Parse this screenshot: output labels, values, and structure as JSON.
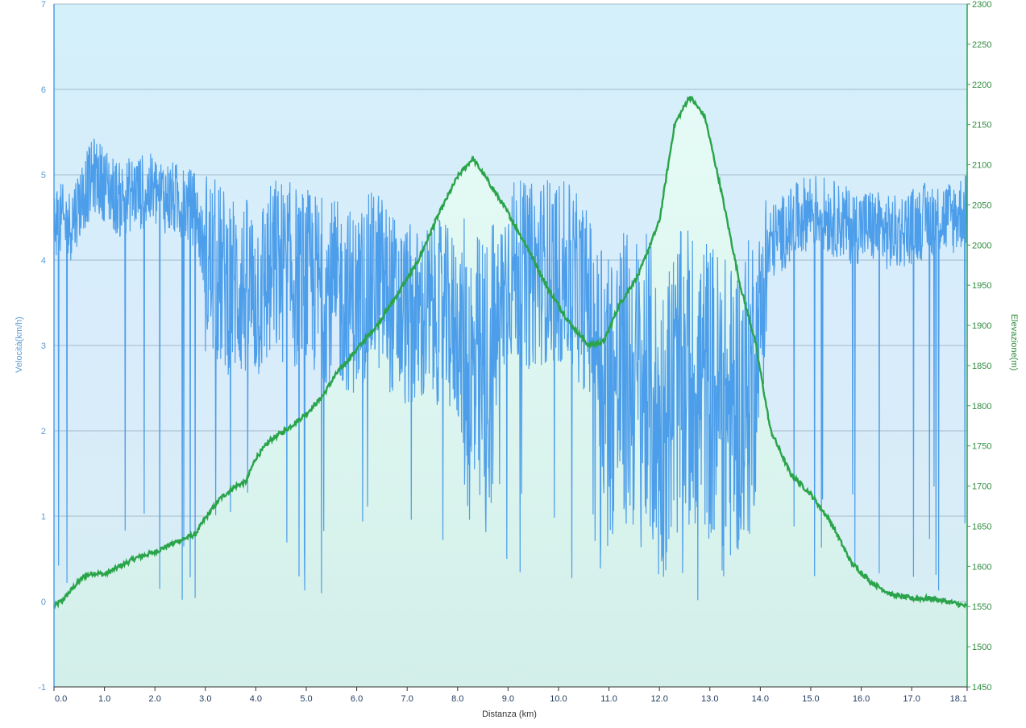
{
  "chart_data": {
    "type": "line",
    "xlabel": "Distanza  (km)",
    "ylabel_left": "Velocità(km/h)",
    "ylabel_right": "Elevazione(m)",
    "x_ticks": [
      "0.0",
      "1.0",
      "2.0",
      "3.0",
      "4.0",
      "5.0",
      "6.0",
      "7.0",
      "8.0",
      "9.0",
      "10.0",
      "11.0",
      "12.0",
      "13.0",
      "14.0",
      "15.0",
      "16.0",
      "17.0",
      "18.1"
    ],
    "xlim": [
      0,
      18.1
    ],
    "ylim_left": [
      -1,
      7
    ],
    "y_left_ticks": [
      "-1",
      "0",
      "1",
      "2",
      "3",
      "4",
      "5",
      "6",
      "7"
    ],
    "ylim_right": [
      1450,
      2300
    ],
    "y_right_ticks": [
      "1450",
      "1500",
      "1550",
      "1600",
      "1650",
      "1700",
      "1750",
      "1800",
      "1850",
      "1900",
      "1950",
      "2000",
      "2050",
      "2100",
      "2150",
      "2200",
      "2250",
      "2300"
    ],
    "grid": true,
    "series": [
      {
        "axis": "left",
        "color": "#4d9eea",
        "x": [
          0.0,
          0.3,
          0.6,
          0.8,
          1.0,
          1.3,
          1.6,
          2.0,
          2.4,
          2.8,
          3.0,
          3.3,
          3.6,
          4.0,
          4.4,
          4.8,
          5.2,
          5.6,
          6.0,
          6.4,
          6.8,
          7.2,
          7.6,
          8.0,
          8.3,
          8.6,
          9.0,
          9.4,
          9.8,
          10.2,
          10.6,
          11.0,
          11.4,
          11.8,
          12.0,
          12.3,
          12.6,
          13.0,
          13.4,
          13.8,
          14.2,
          14.6,
          15.0,
          15.4,
          15.8,
          16.2,
          16.6,
          17.0,
          17.4,
          17.8,
          18.1
        ],
        "values": [
          4.5,
          4.4,
          4.8,
          5.0,
          4.9,
          4.7,
          4.8,
          4.8,
          4.7,
          4.6,
          4.0,
          3.8,
          3.7,
          3.6,
          3.9,
          3.8,
          3.7,
          3.6,
          3.5,
          3.8,
          3.4,
          3.3,
          3.4,
          3.2,
          2.5,
          2.6,
          3.9,
          3.8,
          3.9,
          3.8,
          3.5,
          2.5,
          2.6,
          2.5,
          1.9,
          2.5,
          2.6,
          2.5,
          2.2,
          2.5,
          4.2,
          4.4,
          4.6,
          4.5,
          4.4,
          4.4,
          4.3,
          4.4,
          4.5,
          4.5,
          4.6
        ]
      },
      {
        "axis": "right",
        "color": "#2aa44a",
        "x": [
          0.0,
          0.2,
          0.4,
          0.6,
          0.8,
          1.0,
          1.3,
          1.6,
          2.0,
          2.4,
          2.8,
          3.0,
          3.3,
          3.6,
          3.8,
          4.0,
          4.3,
          4.6,
          5.0,
          5.3,
          5.6,
          6.0,
          6.4,
          6.8,
          7.2,
          7.6,
          8.0,
          8.3,
          8.6,
          9.0,
          9.4,
          9.8,
          10.2,
          10.6,
          10.9,
          11.2,
          11.6,
          12.0,
          12.3,
          12.6,
          12.9,
          13.2,
          13.6,
          13.9,
          14.2,
          14.6,
          15.0,
          15.4,
          15.8,
          16.2,
          16.6,
          17.0,
          17.4,
          17.8,
          18.1
        ],
        "values": [
          1550,
          1560,
          1575,
          1588,
          1592,
          1590,
          1600,
          1610,
          1618,
          1630,
          1640,
          1660,
          1685,
          1700,
          1705,
          1735,
          1758,
          1770,
          1790,
          1810,
          1840,
          1870,
          1900,
          1938,
          1978,
          2035,
          2085,
          2108,
          2080,
          2040,
          1995,
          1945,
          1905,
          1875,
          1880,
          1925,
          1965,
          2030,
          2150,
          2185,
          2160,
          2075,
          1950,
          1880,
          1770,
          1715,
          1690,
          1655,
          1605,
          1580,
          1565,
          1560,
          1560,
          1555,
          1550
        ]
      }
    ]
  }
}
